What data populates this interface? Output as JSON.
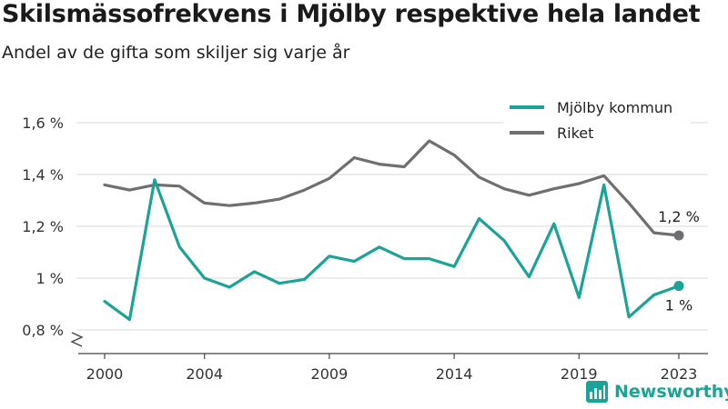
{
  "title": "Skilsmässofrekvens i Mjölby respektive hela landet",
  "subtitle": "Andel av de gifta som skiljer sig varje år",
  "brand": {
    "name": "Newsworthy",
    "color": "#1aa396",
    "icon": "bar-chart-logo-icon"
  },
  "chart_data": {
    "type": "line",
    "x": [
      2000,
      2001,
      2002,
      2003,
      2004,
      2005,
      2006,
      2007,
      2008,
      2009,
      2010,
      2011,
      2012,
      2013,
      2014,
      2015,
      2016,
      2017,
      2018,
      2019,
      2020,
      2021,
      2022,
      2023
    ],
    "x_ticks": [
      2000,
      2004,
      2009,
      2014,
      2019,
      2023
    ],
    "y_ticks": [
      {
        "value": 0.8,
        "label": "0,8 %"
      },
      {
        "value": 1.0,
        "label": "1 %"
      },
      {
        "value": 1.2,
        "label": "1,2 %"
      },
      {
        "value": 1.4,
        "label": "1,4 %"
      },
      {
        "value": 1.6,
        "label": "1,6 %"
      }
    ],
    "ylim": [
      0.8,
      1.6
    ],
    "y_axis_break": true,
    "grid": "horizontal",
    "legend_position": "top-right",
    "series": [
      {
        "name": "Mjölby kommun",
        "color": "#1aa396",
        "values": [
          0.91,
          0.84,
          1.38,
          1.12,
          1.0,
          0.965,
          1.025,
          0.98,
          0.995,
          1.085,
          1.065,
          1.12,
          1.075,
          1.075,
          1.045,
          1.23,
          1.145,
          1.005,
          1.21,
          0.925,
          1.36,
          0.85,
          0.935,
          0.97
        ],
        "end_label": "1 %"
      },
      {
        "name": "Riket",
        "color": "#6f6f72",
        "values": [
          1.36,
          1.34,
          1.36,
          1.355,
          1.29,
          1.28,
          1.29,
          1.305,
          1.34,
          1.385,
          1.465,
          1.44,
          1.43,
          1.53,
          1.475,
          1.39,
          1.345,
          1.32,
          1.345,
          1.365,
          1.395,
          1.29,
          1.175,
          1.165
        ],
        "end_label": "1,2 %"
      }
    ]
  }
}
